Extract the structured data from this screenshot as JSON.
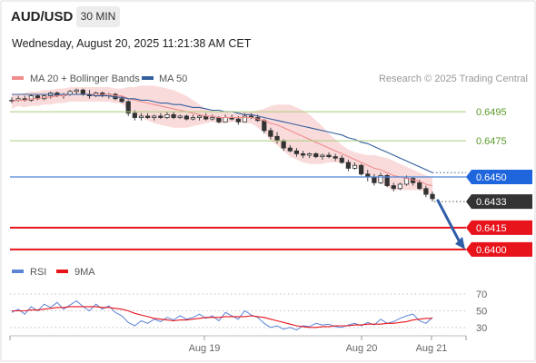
{
  "header": {
    "symbol": "AUD/USD",
    "timeframe": "30 MIN",
    "datetime": "Wednesday, August 20, 2025 11:21:38 AM CET"
  },
  "colors": {
    "ma20": "#f08c8c",
    "ma50": "#335f9e",
    "bollinger": "#f8c8c8",
    "resistance": "#a8cc7a",
    "pivot": "#4f86d9",
    "support": "#e8141c",
    "current": "#333333",
    "arrow": "#2e5ea8",
    "rsi": "#5b84d6",
    "rsi_ma": "#e8141c"
  },
  "chart_data": [
    {
      "type": "candlestick",
      "title": "",
      "legend": [
        {
          "name": "MA 20 + Bollinger Bands",
          "color": "#f08c8c"
        },
        {
          "name": "MA 50",
          "color": "#335f9e"
        }
      ],
      "legend_placement": "top-left",
      "credit": "Research © 2025 Trading Central",
      "x_ticks": [
        "Aug 19",
        "Aug 20",
        "Aug 21"
      ],
      "ylim": [
        0.6393,
        0.6512
      ],
      "candles": [
        [
          0.6503,
          0.6505,
          0.6501,
          0.6503
        ],
        [
          0.6503,
          0.6506,
          0.6502,
          0.6504
        ],
        [
          0.6504,
          0.6506,
          0.6502,
          0.6503
        ],
        [
          0.6503,
          0.6507,
          0.6502,
          0.6506
        ],
        [
          0.6506,
          0.6507,
          0.6503,
          0.6504
        ],
        [
          0.6504,
          0.6507,
          0.6503,
          0.6506
        ],
        [
          0.6506,
          0.6509,
          0.6504,
          0.6508
        ],
        [
          0.6508,
          0.6509,
          0.6505,
          0.6506
        ],
        [
          0.6506,
          0.6508,
          0.6504,
          0.6507
        ],
        [
          0.6507,
          0.651,
          0.6506,
          0.6509
        ],
        [
          0.6509,
          0.6511,
          0.6507,
          0.651
        ],
        [
          0.651,
          0.6511,
          0.6506,
          0.6507
        ],
        [
          0.6507,
          0.651,
          0.6504,
          0.6506
        ],
        [
          0.6506,
          0.6509,
          0.6505,
          0.6508
        ],
        [
          0.6508,
          0.6509,
          0.6505,
          0.6506
        ],
        [
          0.6506,
          0.6508,
          0.6504,
          0.6507
        ],
        [
          0.6507,
          0.6508,
          0.6503,
          0.6504
        ],
        [
          0.6504,
          0.6506,
          0.6501,
          0.6502
        ],
        [
          0.6502,
          0.6503,
          0.6492,
          0.6494
        ],
        [
          0.6494,
          0.6496,
          0.6489,
          0.6491
        ],
        [
          0.6491,
          0.6494,
          0.6489,
          0.6492
        ],
        [
          0.6492,
          0.6494,
          0.649,
          0.6491
        ],
        [
          0.6491,
          0.6493,
          0.6489,
          0.6492
        ],
        [
          0.6492,
          0.6494,
          0.649,
          0.6491
        ],
        [
          0.6491,
          0.6495,
          0.649,
          0.6493
        ],
        [
          0.6493,
          0.6495,
          0.649,
          0.6491
        ],
        [
          0.6491,
          0.6493,
          0.649,
          0.6492
        ],
        [
          0.6492,
          0.6493,
          0.6489,
          0.649
        ],
        [
          0.649,
          0.6493,
          0.6489,
          0.6491
        ],
        [
          0.6491,
          0.6493,
          0.6489,
          0.6492
        ],
        [
          0.6492,
          0.6494,
          0.6489,
          0.649
        ],
        [
          0.649,
          0.6493,
          0.6489,
          0.6491
        ],
        [
          0.6491,
          0.6492,
          0.6487,
          0.6488
        ],
        [
          0.6488,
          0.6493,
          0.6488,
          0.6491
        ],
        [
          0.6491,
          0.6493,
          0.6489,
          0.649
        ],
        [
          0.649,
          0.6492,
          0.6486,
          0.6488
        ],
        [
          0.6488,
          0.6494,
          0.6488,
          0.6492
        ],
        [
          0.6492,
          0.6494,
          0.649,
          0.6491
        ],
        [
          0.6491,
          0.6493,
          0.6488,
          0.6489
        ],
        [
          0.6489,
          0.649,
          0.648,
          0.6482
        ],
        [
          0.6482,
          0.6484,
          0.6476,
          0.6478
        ],
        [
          0.6478,
          0.6481,
          0.6473,
          0.6475
        ],
        [
          0.6475,
          0.6476,
          0.6468,
          0.647
        ],
        [
          0.647,
          0.6472,
          0.6467,
          0.6468
        ],
        [
          0.6468,
          0.647,
          0.6464,
          0.6466
        ],
        [
          0.6466,
          0.6468,
          0.6463,
          0.6465
        ],
        [
          0.6465,
          0.6467,
          0.6463,
          0.6466
        ],
        [
          0.6466,
          0.6467,
          0.6463,
          0.6464
        ],
        [
          0.6464,
          0.6466,
          0.6462,
          0.6465
        ],
        [
          0.6465,
          0.6467,
          0.6463,
          0.6464
        ],
        [
          0.6464,
          0.6466,
          0.6461,
          0.6463
        ],
        [
          0.6463,
          0.6465,
          0.6459,
          0.646
        ],
        [
          0.646,
          0.6462,
          0.6454,
          0.6456
        ],
        [
          0.6456,
          0.646,
          0.6455,
          0.6458
        ],
        [
          0.6458,
          0.6459,
          0.6451,
          0.6452
        ],
        [
          0.6452,
          0.6455,
          0.6447,
          0.645
        ],
        [
          0.645,
          0.6452,
          0.6444,
          0.6446
        ],
        [
          0.6446,
          0.6453,
          0.6445,
          0.6451
        ],
        [
          0.6451,
          0.6452,
          0.6443,
          0.6444
        ],
        [
          0.6444,
          0.6446,
          0.644,
          0.6442
        ],
        [
          0.6442,
          0.6446,
          0.6441,
          0.6445
        ],
        [
          0.6445,
          0.6451,
          0.6444,
          0.6449
        ],
        [
          0.6449,
          0.645,
          0.6444,
          0.6446
        ],
        [
          0.6446,
          0.6448,
          0.6441,
          0.6442
        ],
        [
          0.6442,
          0.6444,
          0.6436,
          0.6438
        ],
        [
          0.6438,
          0.644,
          0.6433,
          0.6435
        ]
      ],
      "ma20": [
        0.6502,
        0.6503,
        0.6503,
        0.6504,
        0.6504,
        0.6505,
        0.6505,
        0.6506,
        0.6506,
        0.6507,
        0.6507,
        0.6507,
        0.6507,
        0.6507,
        0.6507,
        0.6507,
        0.6506,
        0.6506,
        0.6504,
        0.6503,
        0.6502,
        0.6501,
        0.65,
        0.6499,
        0.6498,
        0.6497,
        0.6496,
        0.6495,
        0.6494,
        0.6493,
        0.6492,
        0.6492,
        0.6491,
        0.6491,
        0.6491,
        0.6491,
        0.6491,
        0.6491,
        0.649,
        0.6489,
        0.6487,
        0.6486,
        0.6484,
        0.6482,
        0.648,
        0.6478,
        0.6476,
        0.6474,
        0.6472,
        0.647,
        0.6468,
        0.6466,
        0.6464,
        0.6462,
        0.646,
        0.6458,
        0.6456,
        0.6455,
        0.6453,
        0.6451,
        0.645,
        0.6449,
        0.6448,
        0.6447,
        0.6445,
        0.6444
      ],
      "bollinger_upper": [
        0.6507,
        0.6507,
        0.6508,
        0.6509,
        0.6509,
        0.651,
        0.651,
        0.6511,
        0.6511,
        0.6512,
        0.6512,
        0.6512,
        0.6512,
        0.6512,
        0.6512,
        0.6512,
        0.6511,
        0.6511,
        0.6512,
        0.6512,
        0.6513,
        0.6513,
        0.6513,
        0.6512,
        0.6511,
        0.651,
        0.6508,
        0.6506,
        0.6503,
        0.65,
        0.6497,
        0.6496,
        0.6495,
        0.6495,
        0.6494,
        0.6494,
        0.6495,
        0.6495,
        0.6496,
        0.6497,
        0.6499,
        0.65,
        0.65,
        0.65,
        0.6498,
        0.6496,
        0.6493,
        0.6489,
        0.6485,
        0.648,
        0.6476,
        0.6472,
        0.6469,
        0.6467,
        0.6466,
        0.6465,
        0.6465,
        0.6464,
        0.6463,
        0.6461,
        0.6459,
        0.6457,
        0.6455,
        0.6453,
        0.6451,
        0.645
      ],
      "bollinger_lower": [
        0.6497,
        0.6499,
        0.6498,
        0.6499,
        0.6499,
        0.65,
        0.65,
        0.6501,
        0.6501,
        0.6502,
        0.6502,
        0.6502,
        0.6502,
        0.6502,
        0.6502,
        0.6502,
        0.6501,
        0.6501,
        0.6496,
        0.6494,
        0.6491,
        0.6489,
        0.6487,
        0.6486,
        0.6485,
        0.6484,
        0.6484,
        0.6484,
        0.6485,
        0.6486,
        0.6487,
        0.6488,
        0.6487,
        0.6487,
        0.6488,
        0.6488,
        0.6487,
        0.6487,
        0.6484,
        0.6481,
        0.6475,
        0.6472,
        0.6468,
        0.6464,
        0.6462,
        0.646,
        0.6459,
        0.6459,
        0.6459,
        0.646,
        0.646,
        0.646,
        0.6459,
        0.6457,
        0.6454,
        0.6451,
        0.6447,
        0.6446,
        0.6443,
        0.6441,
        0.6441,
        0.6441,
        0.6441,
        0.6441,
        0.6439,
        0.6438
      ],
      "ma50": [
        0.6507,
        0.6507,
        0.6507,
        0.6507,
        0.6507,
        0.6507,
        0.6507,
        0.6507,
        0.6507,
        0.6507,
        0.6507,
        0.6507,
        0.6507,
        0.6506,
        0.6506,
        0.6506,
        0.6505,
        0.6505,
        0.6504,
        0.6504,
        0.6503,
        0.6503,
        0.6502,
        0.6501,
        0.6501,
        0.65,
        0.65,
        0.6499,
        0.6498,
        0.6498,
        0.6497,
        0.6496,
        0.6496,
        0.6495,
        0.6495,
        0.6494,
        0.6493,
        0.6493,
        0.6492,
        0.6491,
        0.649,
        0.6489,
        0.6488,
        0.6487,
        0.6486,
        0.6485,
        0.6484,
        0.6483,
        0.6482,
        0.6481,
        0.648,
        0.6479,
        0.6477,
        0.6476,
        0.6474,
        0.6473,
        0.6471,
        0.6469,
        0.6467,
        0.6465,
        0.6463,
        0.6461,
        0.6459,
        0.6457,
        0.6455,
        0.6453
      ],
      "levels": [
        {
          "value": 0.6495,
          "label": "0.6495",
          "kind": "resistance"
        },
        {
          "value": 0.6475,
          "label": "0.6475",
          "kind": "resistance"
        },
        {
          "value": 0.645,
          "label": "0.6450",
          "kind": "pivot"
        },
        {
          "value": 0.6433,
          "label": "0.6433",
          "kind": "current"
        },
        {
          "value": 0.6415,
          "label": "0.6415",
          "kind": "support"
        },
        {
          "value": 0.64,
          "label": "0.6400",
          "kind": "support"
        }
      ],
      "arrow_target": 0.64
    },
    {
      "type": "line",
      "legend": [
        {
          "name": "RSI",
          "color": "#5b84d6"
        },
        {
          "name": "9MA",
          "color": "#e8141c"
        }
      ],
      "ylim": [
        20,
        80
      ],
      "y_ticks": [
        "70",
        "50",
        "30"
      ],
      "rsi": [
        48,
        52,
        46,
        55,
        50,
        58,
        54,
        60,
        52,
        57,
        62,
        55,
        50,
        58,
        52,
        56,
        48,
        44,
        36,
        32,
        38,
        35,
        40,
        37,
        42,
        39,
        44,
        40,
        42,
        46,
        41,
        44,
        38,
        48,
        44,
        40,
        50,
        45,
        42,
        35,
        30,
        32,
        28,
        30,
        27,
        32,
        31,
        35,
        33,
        34,
        31,
        30,
        33,
        35,
        32,
        36,
        33,
        40,
        35,
        37,
        41,
        44,
        46,
        38,
        35,
        42
      ],
      "rsi_ma": [
        50,
        50,
        50,
        51,
        51,
        52,
        53,
        54,
        54,
        55,
        55,
        55,
        55,
        55,
        54,
        54,
        53,
        52,
        50,
        47,
        45,
        43,
        41,
        40,
        39,
        38,
        39,
        39,
        40,
        41,
        42,
        42,
        42,
        43,
        43,
        43,
        43,
        44,
        43,
        42,
        40,
        38,
        36,
        34,
        32,
        31,
        30,
        30,
        31,
        31,
        32,
        32,
        32,
        33,
        33,
        34,
        34,
        34,
        35,
        35,
        36,
        37,
        39,
        40,
        41,
        41
      ]
    }
  ]
}
